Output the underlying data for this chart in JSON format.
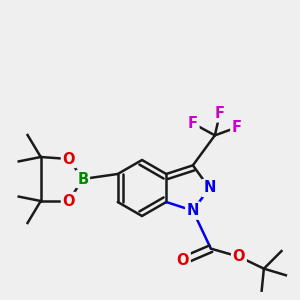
{
  "bg_color": "#efefef",
  "bond_color": "#1a1a1a",
  "bond_width": 1.8,
  "atom_colors": {
    "N": "#0000ee",
    "O": "#dd0000",
    "B": "#008800",
    "F": "#cc00cc"
  },
  "font_size_atom": 10.5
}
